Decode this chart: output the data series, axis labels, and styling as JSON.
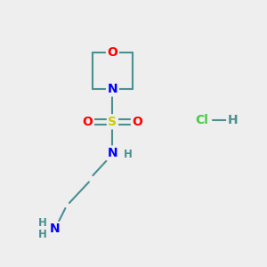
{
  "background_color": "#eeeeee",
  "bond_color": "#4a9090",
  "bond_width": 1.5,
  "atom_colors": {
    "O": "#ff0000",
    "N": "#0000ff",
    "S": "#cccc00",
    "Cl": "#44cc44",
    "H": "#4a9090",
    "C": "#4a9090"
  },
  "font_size_atom": 10,
  "font_size_small": 8.5,
  "figsize": [
    3.0,
    3.0
  ],
  "dpi": 100,
  "xlim": [
    0,
    10
  ],
  "ylim": [
    0,
    10
  ]
}
